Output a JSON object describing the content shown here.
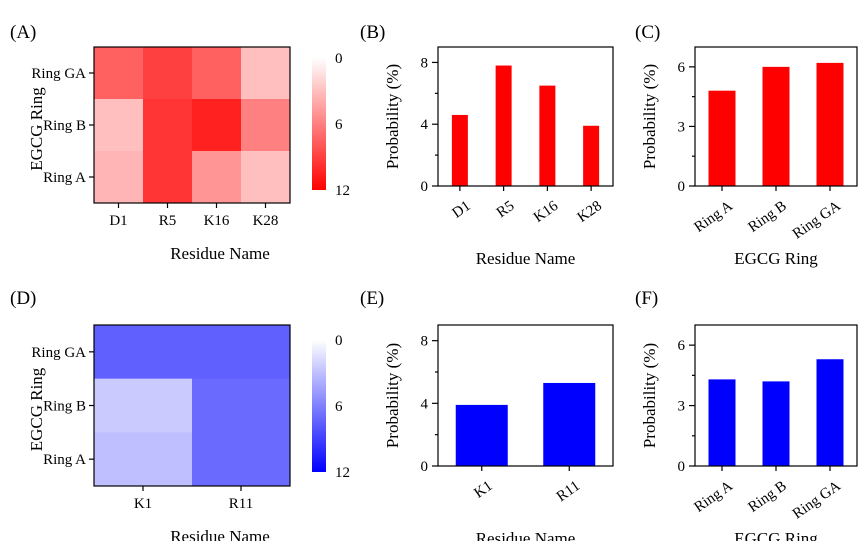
{
  "panels": [
    {
      "tag": "(A)"
    },
    {
      "tag": "(B)"
    },
    {
      "tag": "(C)"
    },
    {
      "tag": "(D)"
    },
    {
      "tag": "(E)"
    },
    {
      "tag": "(F)"
    }
  ],
  "colors": {
    "red": "#ff0000",
    "blue": "#0000ff",
    "white": "#ffffff"
  },
  "chart_data": [
    {
      "panel": "(A)",
      "type": "heatmap",
      "xlabel": "Residue Name",
      "ylabel": "EGCG Ring",
      "x_categories": [
        "D1",
        "R5",
        "K16",
        "K28"
      ],
      "y_categories": [
        "Ring GA",
        "Ring B",
        "Ring A"
      ],
      "values": [
        [
          7.5,
          9.0,
          7.5,
          3.0
        ],
        [
          3.0,
          9.5,
          10.5,
          6.0
        ],
        [
          3.5,
          9.5,
          5.0,
          3.0
        ]
      ],
      "colorbar": {
        "min": 0,
        "max": 12,
        "ticks": [
          "0",
          "6",
          "12"
        ],
        "color_low": "#ffffff",
        "color_high": "#ff0000"
      }
    },
    {
      "panel": "(B)",
      "type": "bar",
      "xlabel": "Residue Name",
      "ylabel": "Probability (%)",
      "categories": [
        "D1",
        "R5",
        "K16",
        "K28"
      ],
      "values": [
        4.6,
        7.8,
        6.5,
        3.9
      ],
      "ylim": [
        0,
        9
      ],
      "yticks": [
        "0",
        "4",
        "8"
      ],
      "color": "#ff0000"
    },
    {
      "panel": "(C)",
      "type": "bar",
      "xlabel": "EGCG Ring",
      "ylabel": "Probability (%)",
      "categories": [
        "Ring A",
        "Ring B",
        "Ring GA"
      ],
      "values": [
        4.8,
        6.0,
        6.2
      ],
      "ylim": [
        0,
        7
      ],
      "yticks": [
        "0",
        "3",
        "6"
      ],
      "color": "#ff0000"
    },
    {
      "panel": "(D)",
      "type": "heatmap",
      "xlabel": "Residue Name",
      "ylabel": "EGCG Ring",
      "x_categories": [
        "K1",
        "R11"
      ],
      "y_categories": [
        "Ring GA",
        "Ring B",
        "Ring A"
      ],
      "values": [
        [
          7.5,
          7.5
        ],
        [
          2.5,
          7.0
        ],
        [
          3.0,
          7.0
        ]
      ],
      "colorbar": {
        "min": 0,
        "max": 12,
        "ticks": [
          "0",
          "6",
          "12"
        ],
        "color_low": "#ffffff",
        "color_high": "#0000ff"
      }
    },
    {
      "panel": "(E)",
      "type": "bar",
      "xlabel": "Residue Name",
      "ylabel": "Probability (%)",
      "categories": [
        "K1",
        "R11"
      ],
      "values": [
        3.9,
        5.3
      ],
      "ylim": [
        0,
        9
      ],
      "yticks": [
        "0",
        "4",
        "8"
      ],
      "color": "#0000ff"
    },
    {
      "panel": "(F)",
      "type": "bar",
      "xlabel": "EGCG Ring",
      "ylabel": "Probability (%)",
      "categories": [
        "Ring A",
        "Ring B",
        "Ring GA"
      ],
      "values": [
        4.3,
        4.2,
        5.3
      ],
      "ylim": [
        0,
        7
      ],
      "yticks": [
        "0",
        "3",
        "6"
      ],
      "color": "#0000ff"
    }
  ]
}
